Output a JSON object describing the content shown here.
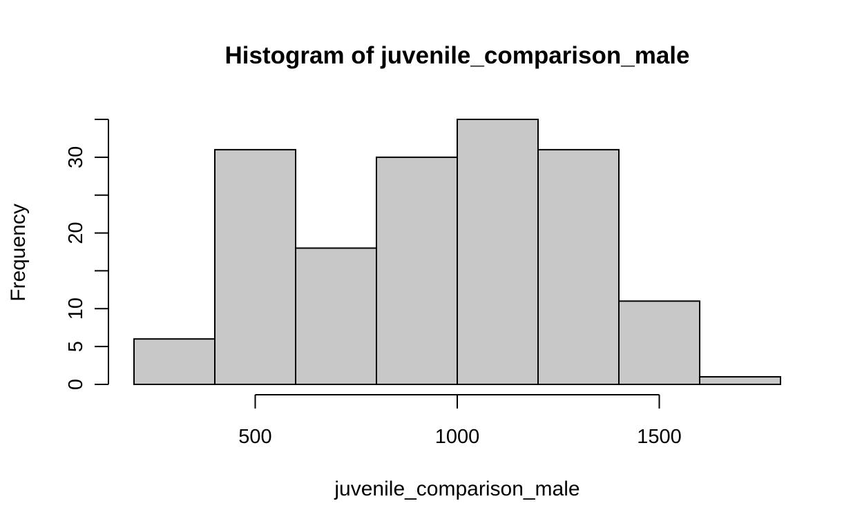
{
  "chart_data": {
    "type": "bar",
    "title": "Histogram of juvenile_comparison_male",
    "xlabel": "juvenile_comparison_male",
    "ylabel": "Frequency",
    "bins": [
      {
        "start": 200,
        "end": 400,
        "count": 6
      },
      {
        "start": 400,
        "end": 600,
        "count": 31
      },
      {
        "start": 600,
        "end": 800,
        "count": 18
      },
      {
        "start": 800,
        "end": 1000,
        "count": 30
      },
      {
        "start": 1000,
        "end": 1200,
        "count": 35
      },
      {
        "start": 1200,
        "end": 1400,
        "count": 31
      },
      {
        "start": 1400,
        "end": 1600,
        "count": 11
      },
      {
        "start": 1600,
        "end": 1800,
        "count": 1
      }
    ],
    "xlim": [
      200,
      1800
    ],
    "ylim": [
      0,
      35
    ],
    "x_ticks": [
      500,
      1000,
      1500
    ],
    "y_ticks": [
      0,
      5,
      10,
      15,
      20,
      25,
      30,
      35
    ],
    "y_tick_labels": [
      "0",
      "5",
      "10",
      "",
      "20",
      "",
      "30",
      ""
    ],
    "bar_color": "#c8c8c8",
    "grid": false
  }
}
